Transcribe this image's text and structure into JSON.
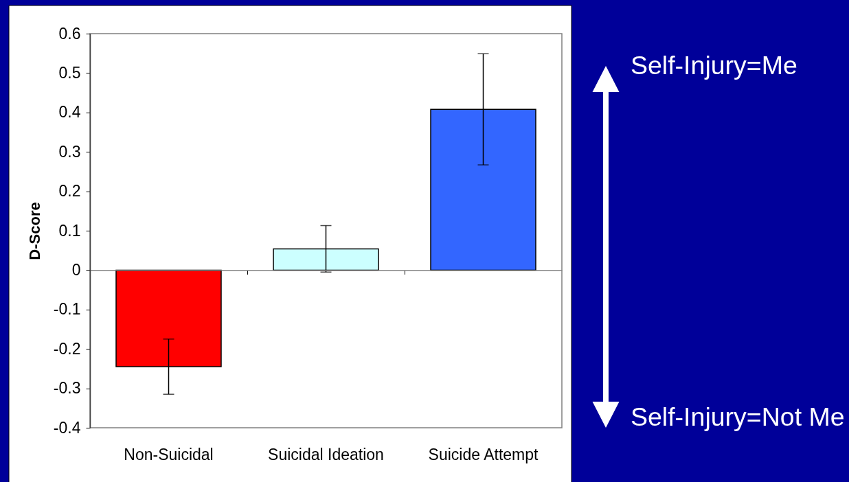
{
  "chart_data": {
    "type": "bar",
    "ylabel": "D-Score",
    "categories": [
      "Non-Suicidal",
      "Suicidal Ideation",
      "Suicide Attempt"
    ],
    "values": [
      -0.245,
      0.054,
      0.408
    ],
    "colors": [
      "#ff0000",
      "#ccffff",
      "#3366ff"
    ],
    "errors": [
      0.07,
      0.059,
      0.141
    ],
    "ylim": [
      -0.4,
      0.6
    ],
    "yticks": [
      -0.4,
      -0.3,
      -0.2,
      -0.1,
      0,
      0.1,
      0.2,
      0.3,
      0.4,
      0.5,
      0.6
    ],
    "annotations": [
      "Self-Injury=Me",
      "Self-Injury=Not Me"
    ]
  }
}
